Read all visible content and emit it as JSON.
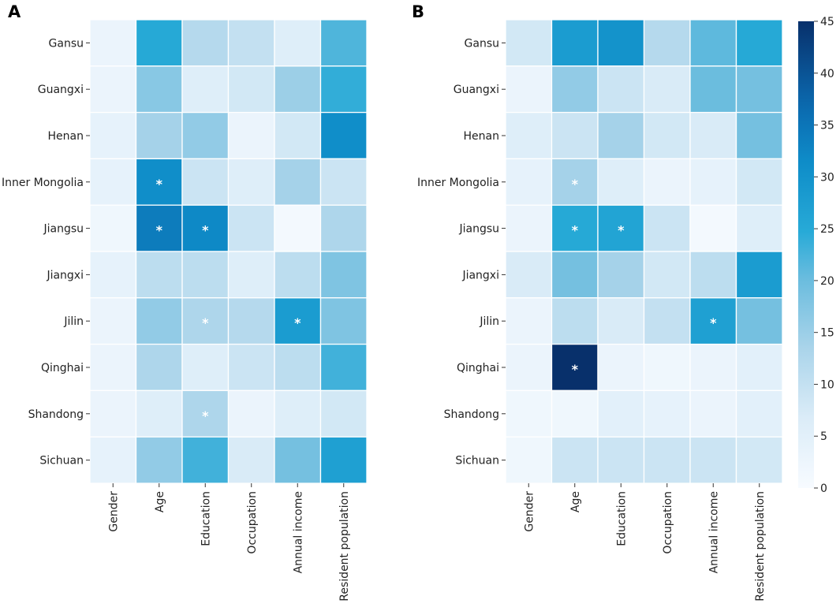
{
  "chart_data": {
    "type": "heatmap",
    "colorbar": {
      "min": 0,
      "max": 45,
      "ticks": [
        "0",
        "5",
        "10",
        "15",
        "20",
        "25",
        "30",
        "35",
        "40",
        "45"
      ],
      "colormap": "Blues"
    },
    "rows": [
      "Gansu",
      "Guangxi",
      "Henan",
      "Inner Mongolia",
      "Jiangsu",
      "Jiangxi",
      "Jilin",
      "Qinghai",
      "Shandong",
      "Sichuan"
    ],
    "columns": [
      "Gender",
      "Age",
      "Education",
      "Occupation",
      "Annual income",
      "Resident population"
    ],
    "significance_marker": "*",
    "panels": [
      {
        "label": "A",
        "values": [
          [
            3,
            25,
            12,
            10,
            6,
            22
          ],
          [
            3,
            17,
            6,
            8,
            15,
            24
          ],
          [
            4,
            14,
            16,
            3,
            8,
            31
          ],
          [
            4,
            31,
            9,
            6,
            14,
            9
          ],
          [
            2,
            34,
            32,
            9,
            1,
            13
          ],
          [
            4,
            11,
            11,
            6,
            11,
            18
          ],
          [
            3,
            16,
            13,
            12,
            28,
            18
          ],
          [
            3,
            13,
            6,
            9,
            11,
            23
          ],
          [
            3,
            6,
            13,
            3,
            6,
            8
          ],
          [
            4,
            16,
            23,
            7,
            19,
            27
          ]
        ],
        "significant": [
          [
            3,
            1
          ],
          [
            4,
            1
          ],
          [
            4,
            2
          ],
          [
            6,
            2
          ],
          [
            6,
            4
          ],
          [
            8,
            2
          ]
        ]
      },
      {
        "label": "B",
        "values": [
          [
            8,
            28,
            30,
            12,
            21,
            25
          ],
          [
            3,
            16,
            9,
            7,
            20,
            19
          ],
          [
            6,
            9,
            14,
            8,
            7,
            19
          ],
          [
            4,
            14,
            6,
            3,
            4,
            8
          ],
          [
            3,
            25,
            26,
            9,
            1,
            6
          ],
          [
            7,
            19,
            14,
            8,
            11,
            28
          ],
          [
            3,
            11,
            7,
            10,
            27,
            19
          ],
          [
            3,
            45,
            3,
            2,
            3,
            5
          ],
          [
            2,
            2,
            5,
            4,
            3,
            5
          ],
          [
            2,
            9,
            9,
            9,
            9,
            8
          ]
        ],
        "significant": [
          [
            3,
            1
          ],
          [
            4,
            1
          ],
          [
            4,
            2
          ],
          [
            6,
            4
          ],
          [
            7,
            1
          ]
        ]
      }
    ]
  }
}
